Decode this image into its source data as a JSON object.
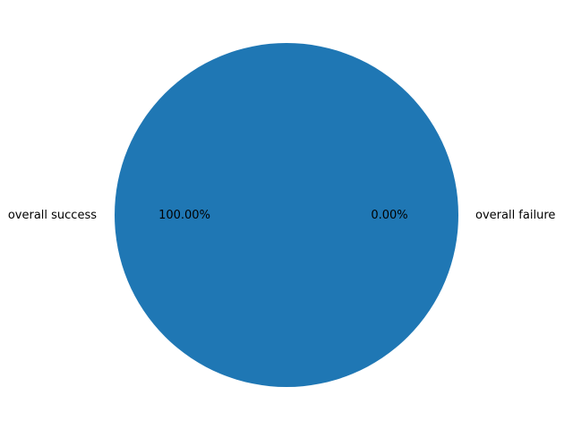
{
  "chart_data": {
    "type": "pie",
    "title": "",
    "slices": [
      {
        "label": "overall success",
        "value": 100.0,
        "pct_label": "100.00%",
        "color": "#1f77b4"
      },
      {
        "label": "overall failure",
        "value": 0.0,
        "pct_label": "0.00%",
        "color": "#ff7f0e"
      }
    ],
    "start_angle_deg": 0,
    "legend": "none"
  }
}
